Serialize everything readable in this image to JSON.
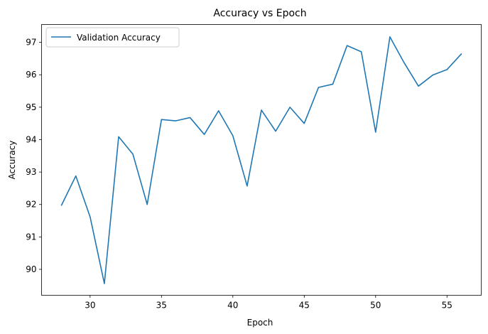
{
  "chart_data": {
    "type": "line",
    "title": "Accuracy vs Epoch",
    "xlabel": "Epoch",
    "ylabel": "Accuracy",
    "xlim": [
      26.6,
      57.4
    ],
    "ylim": [
      89.2,
      97.55
    ],
    "xticks": [
      30,
      35,
      40,
      45,
      50,
      55
    ],
    "yticks": [
      90,
      91,
      92,
      93,
      94,
      95,
      96,
      97
    ],
    "grid": false,
    "legend": "top-left",
    "series": [
      {
        "name": "Validation Accuracy",
        "color": "#1f77b4",
        "x": [
          28,
          29,
          30,
          31,
          32,
          33,
          34,
          35,
          36,
          37,
          38,
          39,
          40,
          41,
          42,
          43,
          44,
          45,
          46,
          47,
          48,
          49,
          50,
          51,
          52,
          53,
          54,
          55,
          56
        ],
        "y": [
          91.98,
          92.88,
          91.62,
          89.56,
          94.09,
          93.55,
          92.0,
          94.62,
          94.58,
          94.68,
          94.16,
          94.89,
          94.12,
          92.57,
          94.91,
          94.26,
          95.0,
          94.5,
          95.61,
          95.71,
          96.9,
          96.71,
          94.23,
          97.17,
          96.37,
          95.65,
          95.99,
          96.16,
          96.64
        ]
      }
    ]
  }
}
